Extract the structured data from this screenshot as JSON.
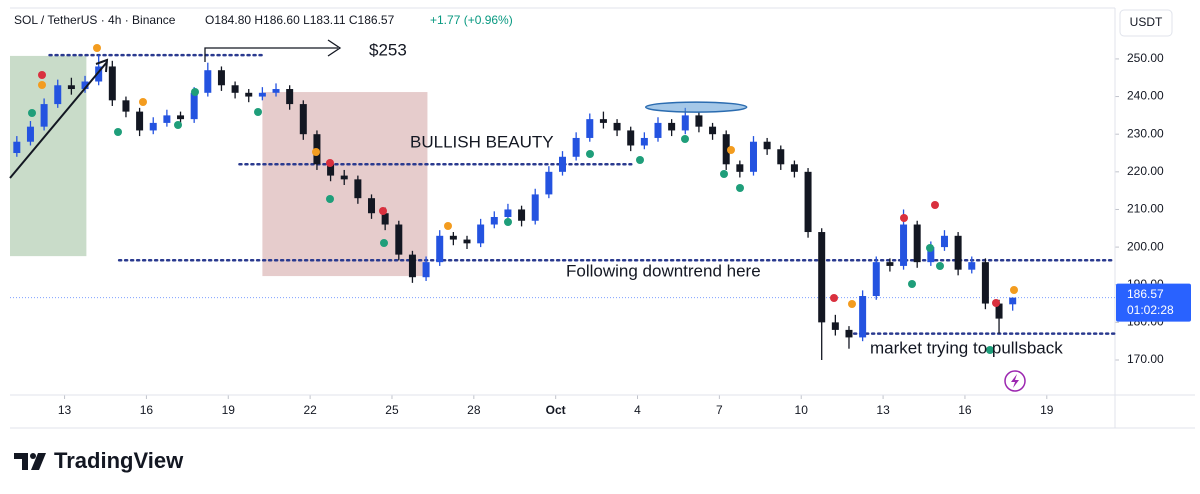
{
  "chart_data": {
    "type": "candlestick",
    "header": {
      "symbol": "SOL / TetherUS · 4h · Binance",
      "ohlc": "O184.80  H186.60  L183.11  C186.57",
      "change": "+1.77 (+0.96%)"
    },
    "currency": "USDT",
    "last_price": 186.57,
    "countdown": "01:02:28",
    "brand": "TradingView",
    "annotations": {
      "target": "$253",
      "bullish": "BULLISH BEAUTY",
      "downtrend": "Following downtrend here",
      "pullback": "market trying to pullsback"
    },
    "up_color": "#2453e0",
    "down_color": "#131722",
    "xlim": [
      11,
      51.5
    ],
    "ylim": [
      160.7,
      263.0
    ],
    "xticks": [
      13,
      16,
      19,
      22,
      25,
      28,
      {
        "value": 31,
        "label": "Oct"
      },
      {
        "value": 34,
        "label": "4"
      },
      {
        "value": 37,
        "label": "7"
      },
      {
        "value": 40,
        "label": "10"
      },
      {
        "value": 43,
        "label": "13"
      },
      {
        "value": 46,
        "label": "16"
      },
      {
        "value": 49,
        "label": "19"
      }
    ],
    "yticks": [
      {
        "value": 170,
        "label": "170.00"
      },
      {
        "value": 180,
        "label": "180.00"
      },
      {
        "value": 190,
        "label": "190.00"
      },
      {
        "value": 200,
        "label": "200.00"
      },
      {
        "value": 210,
        "label": "210.00"
      },
      {
        "value": 220,
        "label": "220.00"
      },
      {
        "value": 230,
        "label": "230.00"
      },
      {
        "value": 240,
        "label": "240.00"
      },
      {
        "value": 250,
        "label": "250.00"
      }
    ],
    "zones": [
      {
        "x": [
          11,
          13.8
        ],
        "y": [
          197.6,
          250.8
        ],
        "color": "#c9dcc9"
      },
      {
        "x": [
          20.25,
          26.3
        ],
        "y": [
          192.3,
          241.2
        ],
        "color": "#e6cccc"
      }
    ],
    "ellipse": {
      "x": [
        34.3,
        38.0
      ],
      "y": 237.2
    },
    "hlines": [
      {
        "y": 251,
        "x": [
          12.45,
          20.33
        ]
      },
      {
        "y": 222,
        "x": [
          19.41,
          33.77
        ]
      },
      {
        "y": 196.5,
        "x": [
          15.0,
          51.5
        ]
      },
      {
        "y": 177,
        "x": [
          41.94,
          51.5
        ]
      }
    ],
    "x": [
      11.25,
      11.75,
      12.25,
      12.75,
      13.25,
      13.75,
      14.25,
      14.75,
      15.25,
      15.75,
      16.25,
      16.75,
      17.25,
      17.75,
      18.25,
      18.75,
      19.25,
      19.75,
      20.25,
      20.75,
      21.25,
      21.75,
      22.25,
      22.75,
      23.25,
      23.75,
      24.25,
      24.75,
      25.25,
      25.75,
      26.25,
      26.75,
      27.25,
      27.75,
      28.25,
      28.75,
      29.25,
      29.75,
      30.25,
      30.75,
      31.25,
      31.75,
      32.25,
      32.75,
      33.25,
      33.75,
      34.25,
      34.75,
      35.25,
      35.75,
      36.25,
      36.75,
      37.25,
      37.75,
      38.25,
      38.75,
      39.25,
      39.75,
      40.25,
      40.75,
      41.25,
      41.75,
      42.25,
      42.75,
      43.25,
      43.75,
      44.25,
      44.75,
      45.25,
      45.75,
      46.25,
      46.75,
      47.25,
      47.75
    ],
    "candles": [
      [
        225,
        229.5,
        224,
        228
      ],
      [
        228,
        233.5,
        227,
        232
      ],
      [
        232,
        239.5,
        231,
        238
      ],
      [
        238,
        244.5,
        237,
        243
      ],
      [
        243,
        245,
        240.5,
        242
      ],
      [
        242,
        245.5,
        241,
        244
      ],
      [
        244,
        251,
        243,
        248
      ],
      [
        248,
        249.5,
        237.5,
        239
      ],
      [
        239,
        240,
        234.5,
        236
      ],
      [
        236,
        237,
        229.5,
        231
      ],
      [
        231,
        234.5,
        230,
        233
      ],
      [
        233,
        236.5,
        232,
        235
      ],
      [
        235,
        236,
        232.5,
        234
      ],
      [
        234,
        242.5,
        233,
        241
      ],
      [
        241,
        249,
        240,
        247
      ],
      [
        247,
        248,
        241.5,
        243
      ],
      [
        243,
        244,
        239.5,
        241
      ],
      [
        241,
        242,
        238.5,
        240
      ],
      [
        240,
        242.5,
        239,
        241
      ],
      [
        241,
        243.5,
        240,
        242
      ],
      [
        242,
        243,
        236.5,
        238
      ],
      [
        238,
        239,
        228.5,
        230
      ],
      [
        230,
        231,
        220.5,
        222
      ],
      [
        222,
        223,
        217.5,
        219
      ],
      [
        219,
        220.5,
        216.5,
        218
      ],
      [
        218,
        219,
        211.5,
        213
      ],
      [
        213,
        214,
        207.5,
        209
      ],
      [
        209,
        210.5,
        204.5,
        206
      ],
      [
        206,
        207,
        196.5,
        198
      ],
      [
        198,
        199,
        190.5,
        192
      ],
      [
        192,
        197.5,
        191,
        196
      ],
      [
        196,
        204.5,
        195,
        203
      ],
      [
        203,
        204,
        200.5,
        202
      ],
      [
        202,
        203,
        199.5,
        201
      ],
      [
        201,
        207.5,
        200,
        206
      ],
      [
        206,
        209.5,
        205,
        208
      ],
      [
        208,
        211.5,
        207,
        210
      ],
      [
        210,
        211,
        205.5,
        207
      ],
      [
        207,
        215.5,
        206,
        214
      ],
      [
        214,
        221.5,
        213,
        220
      ],
      [
        220,
        225.5,
        219,
        224
      ],
      [
        224,
        230.5,
        223,
        229
      ],
      [
        229,
        235.5,
        228,
        234
      ],
      [
        234,
        236,
        231.5,
        233
      ],
      [
        233,
        234,
        229.5,
        231
      ],
      [
        231,
        232,
        225.5,
        227
      ],
      [
        227,
        230.5,
        226,
        229
      ],
      [
        229,
        234.5,
        228,
        233
      ],
      [
        233,
        234,
        229.5,
        231
      ],
      [
        231,
        237,
        230,
        235
      ],
      [
        235,
        236,
        230.5,
        232
      ],
      [
        232,
        233,
        228.5,
        230
      ],
      [
        230,
        231,
        220.5,
        222
      ],
      [
        222,
        223,
        218.5,
        220
      ],
      [
        220,
        229.5,
        219,
        228
      ],
      [
        228,
        229,
        224.5,
        226
      ],
      [
        226,
        227,
        220.5,
        222
      ],
      [
        222,
        223,
        218.5,
        220
      ],
      [
        220,
        221,
        202.5,
        204
      ],
      [
        204,
        205,
        170,
        180
      ],
      [
        180,
        182,
        176.5,
        178
      ],
      [
        178,
        179,
        173,
        176
      ],
      [
        176,
        188.5,
        175,
        187
      ],
      [
        187,
        197.5,
        186,
        196
      ],
      [
        196,
        197,
        193.5,
        195
      ],
      [
        195,
        210,
        194,
        206
      ],
      [
        206,
        207,
        194.5,
        196
      ],
      [
        196,
        201.5,
        195,
        200
      ],
      [
        200,
        204.5,
        199,
        203
      ],
      [
        203,
        204,
        192.5,
        194
      ],
      [
        194,
        197.5,
        193,
        196
      ],
      [
        196,
        197,
        183.5,
        185
      ],
      [
        185,
        186,
        177,
        181
      ],
      [
        184.8,
        186.6,
        183.11,
        186.57
      ]
    ]
  }
}
